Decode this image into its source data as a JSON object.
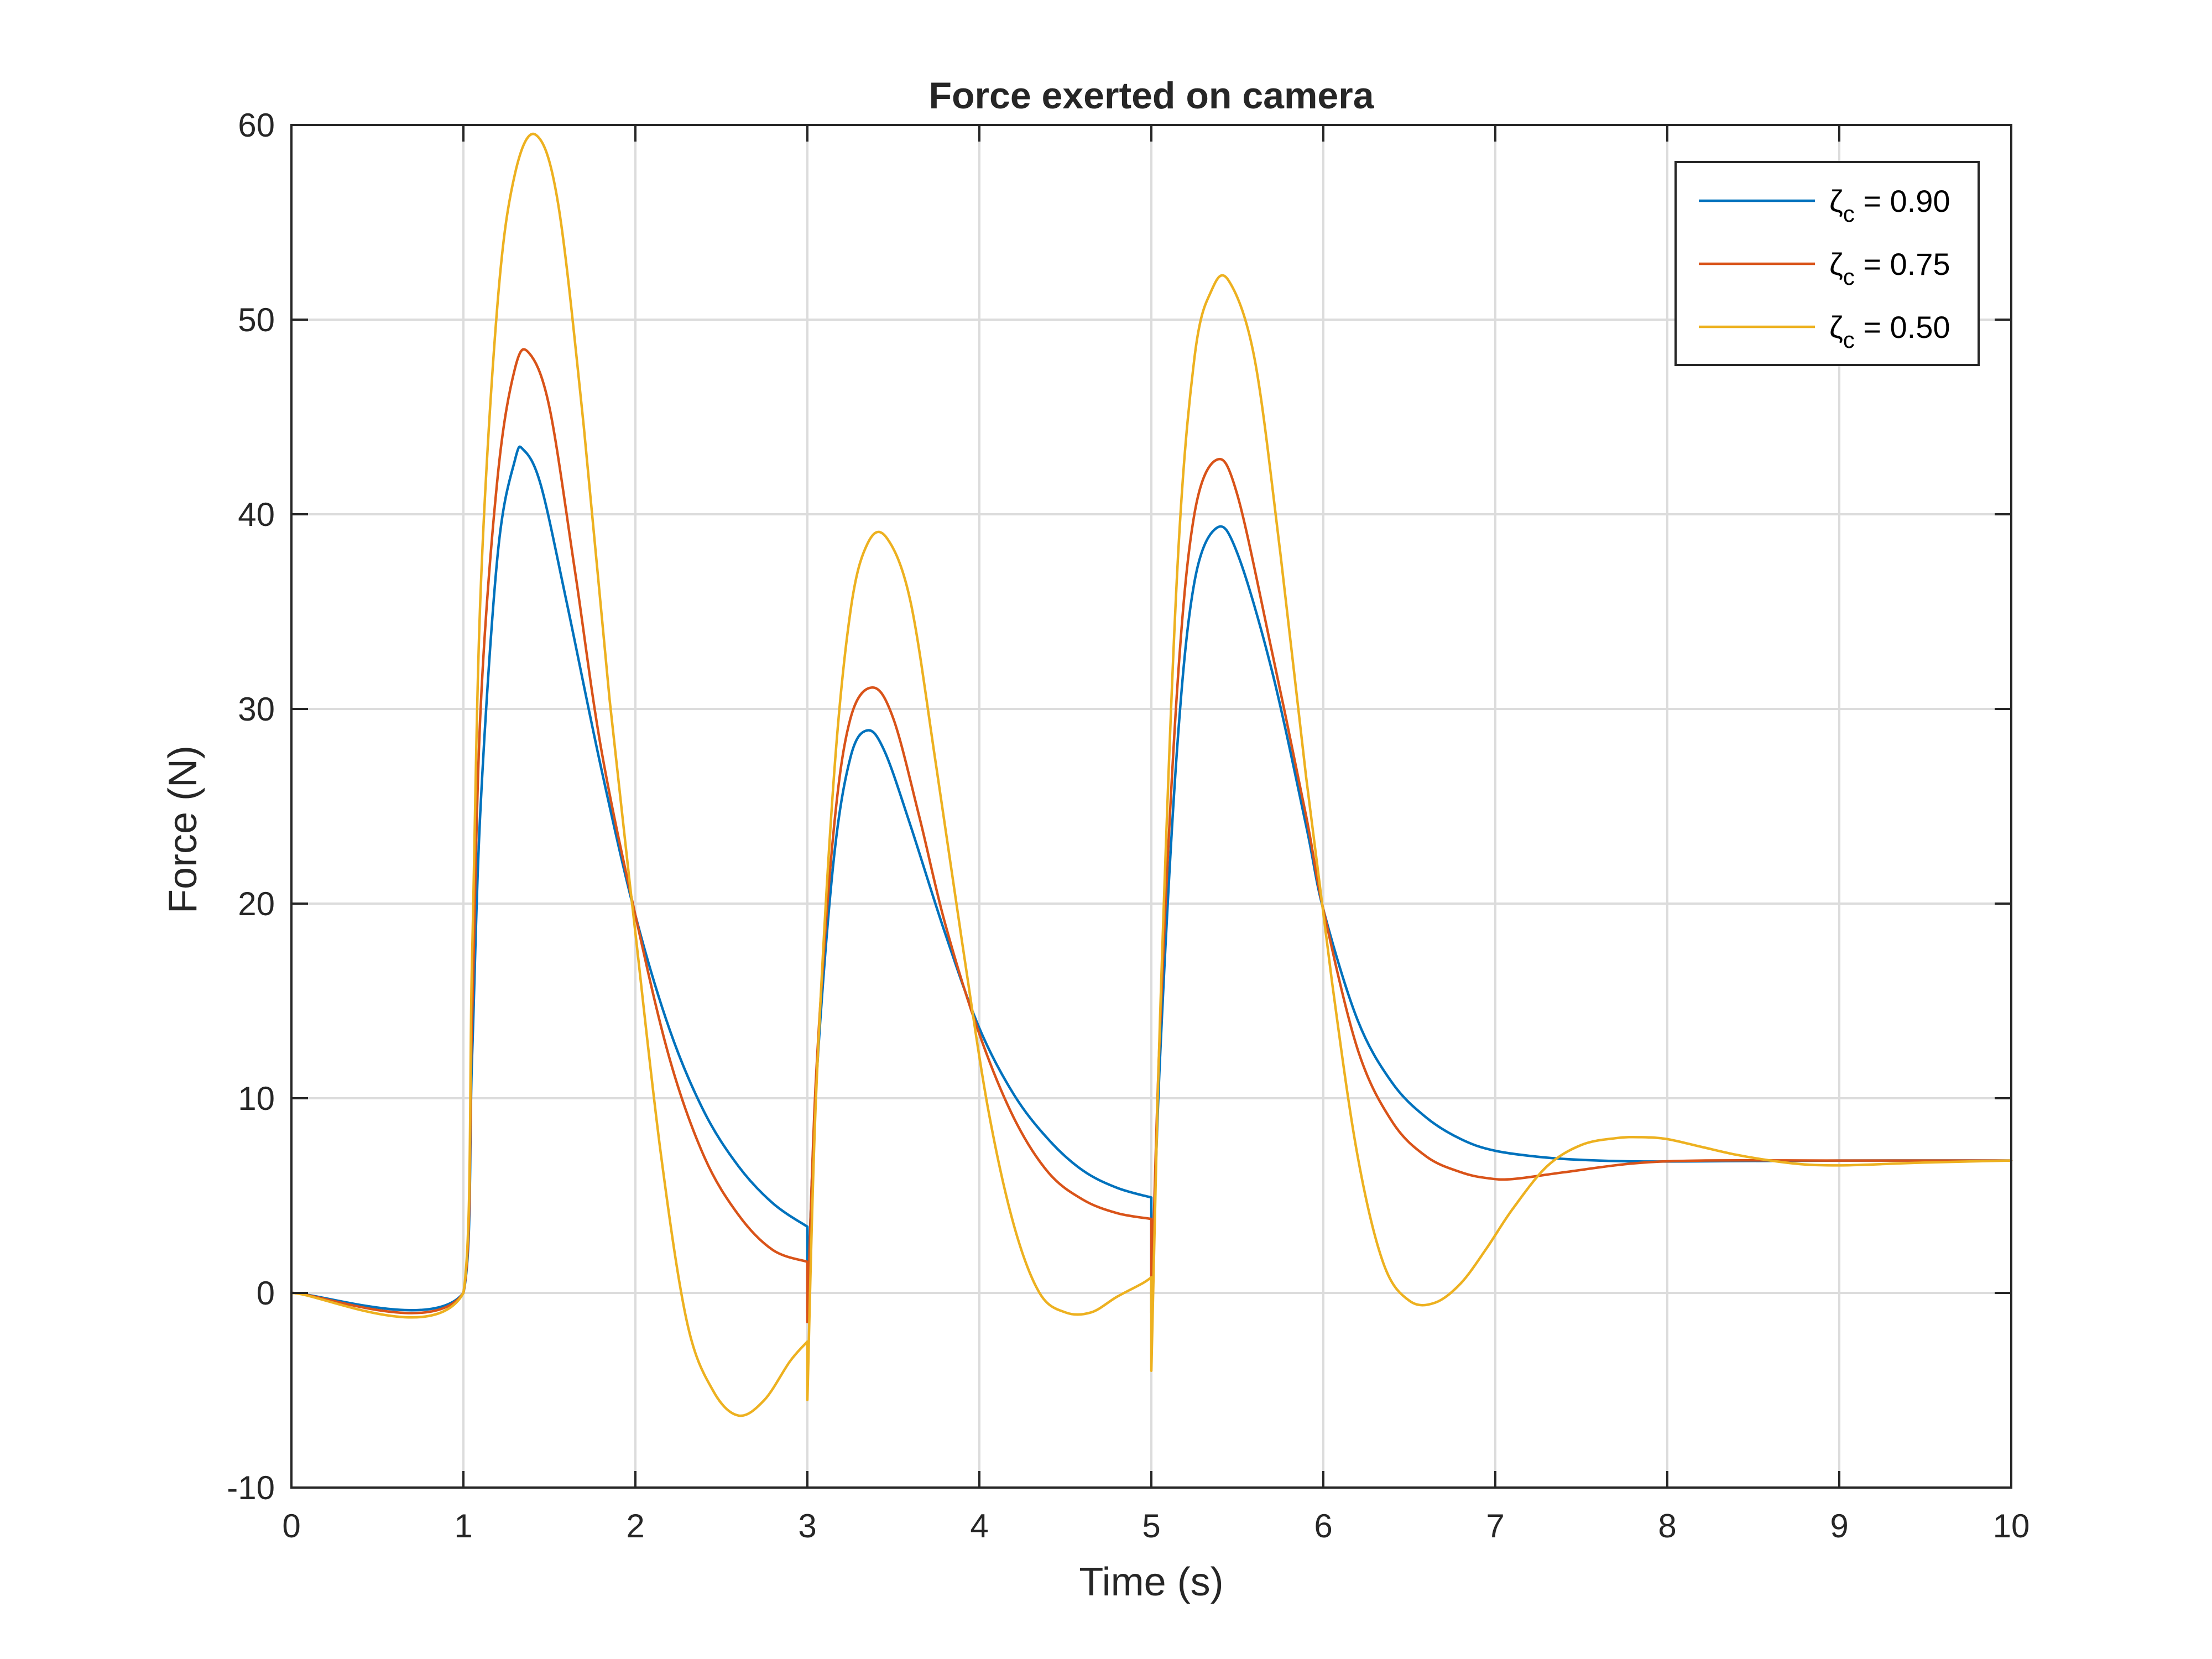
{
  "chart_data": {
    "type": "line",
    "title": "Force exerted on camera",
    "xlabel": "Time (s)",
    "ylabel": "Force (N)",
    "xlim": [
      0,
      10
    ],
    "ylim": [
      -10,
      60
    ],
    "xticks": [
      0,
      1,
      2,
      3,
      4,
      5,
      6,
      7,
      8,
      9,
      10
    ],
    "yticks": [
      -10,
      0,
      10,
      20,
      30,
      40,
      50,
      60
    ],
    "xtick_labels": [
      "0",
      "1",
      "2",
      "3",
      "4",
      "5",
      "6",
      "7",
      "8",
      "9",
      "10"
    ],
    "ytick_labels": [
      "-10",
      "0",
      "10",
      "20",
      "30",
      "40",
      "50",
      "60"
    ],
    "grid": true,
    "legend_position": "top-right",
    "series": [
      {
        "name": "ζc = 0.90",
        "legend_symbol": "ζ",
        "legend_subscript": "c",
        "legend_value": " = 0.90",
        "color": "#0072BD",
        "x": [
          0,
          1,
          1.05,
          1.1,
          1.2,
          1.3,
          1.35,
          1.45,
          1.6,
          1.8,
          2.0,
          2.2,
          2.4,
          2.6,
          2.8,
          3.0,
          3.0,
          3.05,
          3.15,
          3.25,
          3.35,
          3.45,
          3.6,
          3.8,
          4.0,
          4.2,
          4.4,
          4.6,
          4.8,
          5.0,
          5.0,
          5.05,
          5.15,
          5.25,
          5.38,
          5.5,
          5.7,
          5.9,
          6.0,
          6.2,
          6.4,
          6.6,
          6.8,
          7.0,
          7.3,
          7.6,
          8.0,
          9.0,
          10.0
        ],
        "y": [
          0,
          0,
          12,
          25,
          38,
          42.8,
          43.3,
          41.5,
          35.5,
          27.0,
          19.4,
          13.5,
          9.3,
          6.5,
          4.6,
          3.4,
          -1.0,
          10.5,
          22.0,
          27.5,
          28.9,
          27.8,
          24.0,
          18.5,
          13.6,
          10.2,
          7.9,
          6.3,
          5.4,
          4.9,
          -1.0,
          12.0,
          28.0,
          36.5,
          39.3,
          38.0,
          32.0,
          24.0,
          19.7,
          14.0,
          10.8,
          9.0,
          7.9,
          7.3,
          6.95,
          6.8,
          6.75,
          6.8,
          6.8
        ]
      },
      {
        "name": "ζc = 0.75",
        "legend_symbol": "ζ",
        "legend_subscript": "c",
        "legend_value": " = 0.75",
        "color": "#D95319",
        "x": [
          0,
          1,
          1.05,
          1.1,
          1.2,
          1.3,
          1.38,
          1.5,
          1.65,
          1.8,
          2.0,
          2.2,
          2.4,
          2.6,
          2.8,
          3.0,
          3.0,
          3.05,
          3.15,
          3.25,
          3.38,
          3.5,
          3.65,
          3.8,
          4.0,
          4.2,
          4.4,
          4.6,
          4.8,
          5.0,
          5.0,
          5.05,
          5.15,
          5.25,
          5.38,
          5.5,
          5.7,
          5.9,
          6.0,
          6.2,
          6.4,
          6.6,
          6.8,
          6.95,
          7.1,
          7.4,
          7.8,
          8.2,
          9.0,
          10.0
        ],
        "y": [
          0,
          0,
          14,
          30,
          42,
          47.5,
          48.3,
          45.5,
          37.0,
          28.0,
          19.4,
          12.0,
          7.0,
          4.0,
          2.2,
          1.6,
          -1.5,
          11.0,
          23.5,
          29.5,
          31.1,
          29.5,
          24.5,
          19.0,
          13.3,
          9.0,
          6.2,
          4.8,
          4.1,
          3.8,
          -1.0,
          13.5,
          31.0,
          40.0,
          42.8,
          41.0,
          33.0,
          24.5,
          19.7,
          12.5,
          8.8,
          7.0,
          6.2,
          5.9,
          5.85,
          6.2,
          6.65,
          6.8,
          6.8,
          6.8
        ]
      },
      {
        "name": "ζc = 0.50",
        "legend_symbol": "ζ",
        "legend_subscript": "c",
        "legend_value": " = 0.50",
        "color": "#EDB120",
        "x": [
          0,
          1,
          1.05,
          1.1,
          1.2,
          1.3,
          1.42,
          1.55,
          1.7,
          1.85,
          2.0,
          2.15,
          2.3,
          2.45,
          2.6,
          2.75,
          2.9,
          3.0,
          3.0,
          3.05,
          3.15,
          3.25,
          3.35,
          3.46,
          3.6,
          3.75,
          3.9,
          4.05,
          4.2,
          4.35,
          4.5,
          4.65,
          4.8,
          4.95,
          5.0,
          5.0,
          5.05,
          5.15,
          5.25,
          5.35,
          5.45,
          5.6,
          5.75,
          5.9,
          6.05,
          6.2,
          6.35,
          6.5,
          6.65,
          6.8,
          6.95,
          7.1,
          7.3,
          7.5,
          7.7,
          7.85,
          8.0,
          8.2,
          8.4,
          8.6,
          8.8,
          9.0,
          9.2,
          9.5,
          10.0
        ],
        "y": [
          0,
          0,
          17,
          36,
          51,
          57.5,
          59.5,
          56.0,
          44.5,
          30.5,
          18.5,
          7.0,
          -1.5,
          -5.0,
          -6.3,
          -5.5,
          -3.5,
          -2.5,
          -5.5,
          10.0,
          26.0,
          35.0,
          38.5,
          38.8,
          35.5,
          27.0,
          18.0,
          9.5,
          3.5,
          0.0,
          -1.0,
          -1.0,
          -0.2,
          0.5,
          0.8,
          -4.0,
          14.0,
          37.0,
          48.0,
          51.5,
          52.0,
          48.0,
          38.0,
          26.5,
          16.0,
          7.0,
          1.5,
          -0.4,
          -0.5,
          0.5,
          2.3,
          4.3,
          6.5,
          7.6,
          7.95,
          8.0,
          7.9,
          7.5,
          7.1,
          6.8,
          6.6,
          6.55,
          6.6,
          6.7,
          6.8
        ]
      }
    ]
  }
}
